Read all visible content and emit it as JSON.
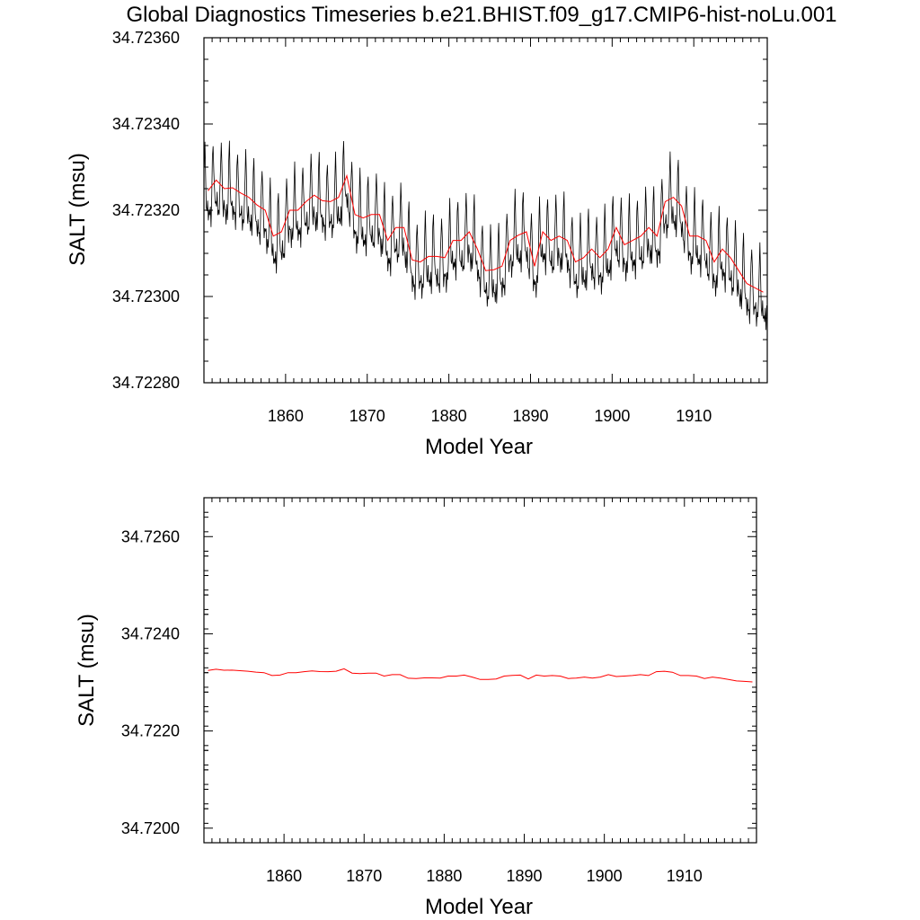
{
  "figure_title": "Global Diagnostics Timeseries b.e21.BHIST.f09_g17.CMIP6-hist-noLu.001",
  "colors": {
    "monthly": "#000000",
    "annual": "#ff0000",
    "frame": "#000000"
  },
  "chart_data": [
    {
      "type": "line",
      "xlabel": "Model Year",
      "ylabel": "SALT (msu)",
      "xlim": [
        1850,
        1919
      ],
      "ylim": [
        34.7228,
        34.7236
      ],
      "xticks": [
        1860,
        1870,
        1880,
        1890,
        1900,
        1910
      ],
      "yticks": [
        34.7228,
        34.723,
        34.7232,
        34.7234,
        34.7236
      ],
      "ytick_labels": [
        "34.72280",
        "34.72300",
        "34.72320",
        "34.72340",
        "34.72360"
      ],
      "grid": false,
      "series": [
        {
          "key": "monthly",
          "seasonal_amplitude": 0.00011,
          "x_start": 1850.04,
          "x_step": 0.0833,
          "annual_minimum_offset": 8e-05
        },
        {
          "key": "annual",
          "x": [
            1850.5,
            1851.5,
            1852.5,
            1853.5,
            1854.5,
            1855.5,
            1856.5,
            1857.5,
            1858.5,
            1859.5,
            1860.5,
            1861.5,
            1862.5,
            1863.5,
            1864.5,
            1865.5,
            1866.5,
            1867.5,
            1868.5,
            1869.5,
            1870.5,
            1871.5,
            1872.5,
            1873.5,
            1874.5,
            1875.5,
            1876.5,
            1877.5,
            1878.5,
            1879.5,
            1880.5,
            1881.5,
            1882.5,
            1883.5,
            1884.5,
            1885.5,
            1886.5,
            1887.5,
            1888.5,
            1889.5,
            1890.5,
            1891.5,
            1892.5,
            1893.5,
            1894.5,
            1895.5,
            1896.5,
            1897.5,
            1898.5,
            1899.5,
            1900.5,
            1901.5,
            1902.5,
            1903.5,
            1904.5,
            1905.5,
            1906.5,
            1907.5,
            1908.5,
            1909.5,
            1910.5,
            1911.5,
            1912.5,
            1913.5,
            1914.5,
            1915.5,
            1916.5,
            1917.5,
            1918.5
          ],
          "values": [
            34.723245,
            34.72327,
            34.72325,
            34.723252,
            34.72324,
            34.72323,
            34.723212,
            34.7232,
            34.72314,
            34.72315,
            34.7232,
            34.7232,
            34.72322,
            34.723235,
            34.723222,
            34.72322,
            34.72323,
            34.72328,
            34.72319,
            34.723182,
            34.72319,
            34.72319,
            34.72313,
            34.72316,
            34.72316,
            34.723085,
            34.72308,
            34.723093,
            34.723093,
            34.72309,
            34.72313,
            34.72313,
            34.72315,
            34.72311,
            34.72306,
            34.723062,
            34.72307,
            34.72313,
            34.723142,
            34.72315,
            34.72307,
            34.72315,
            34.72313,
            34.72314,
            34.72313,
            34.72308,
            34.72309,
            34.72311,
            34.72309,
            34.72311,
            34.72316,
            34.72312,
            34.72313,
            34.72314,
            34.72316,
            34.72314,
            34.72322,
            34.72323,
            34.72321,
            34.72314,
            34.72314,
            34.72313,
            34.72308,
            34.72311,
            34.72309,
            34.72306,
            34.72303,
            34.72302,
            34.72301
          ]
        }
      ]
    },
    {
      "type": "line",
      "xlabel": "Model Year",
      "ylabel": "SALT (msu)",
      "xlim": [
        1850,
        1919
      ],
      "ylim": [
        34.7197,
        34.7268
      ],
      "xticks": [
        1860,
        1870,
        1880,
        1890,
        1900,
        1910
      ],
      "yticks": [
        34.72,
        34.722,
        34.724,
        34.726
      ],
      "ytick_labels": [
        "34.7200",
        "34.7220",
        "34.7240",
        "34.7260"
      ],
      "grid": false,
      "series": [
        {
          "key": "annual",
          "source": "annual series of panel 1"
        }
      ]
    }
  ]
}
